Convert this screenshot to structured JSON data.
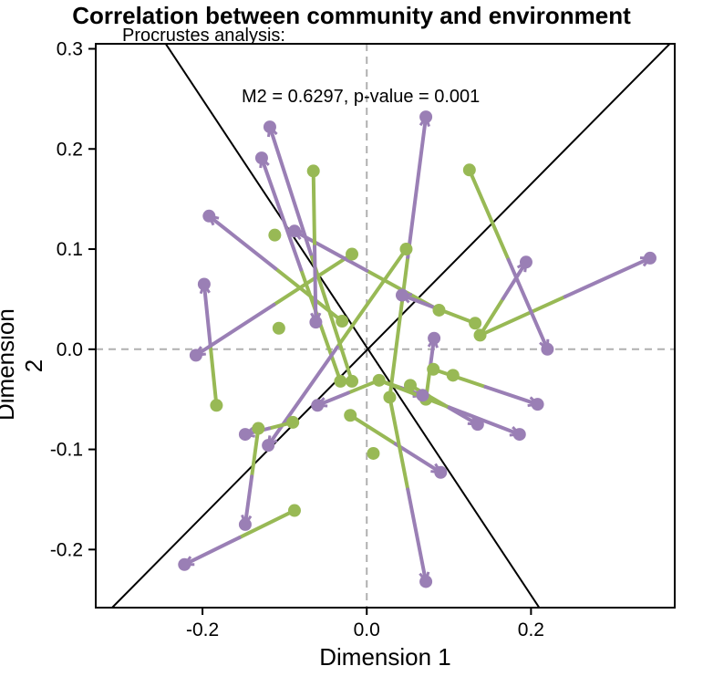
{
  "chart_data": {
    "type": "scatter",
    "title": "Correlation between community and environment",
    "subtitle": "Procrustes analysis:",
    "annotation": "M2 = 0.6297, p-value = 0.001",
    "xlabel": "Dimension 1",
    "ylabel": "Dimension 2",
    "xlim": [
      -0.33,
      0.375
    ],
    "ylim": [
      -0.258,
      0.305
    ],
    "xticks": [
      -0.2,
      0.0,
      0.2
    ],
    "xtick_labels": [
      "-0.2",
      "0.0",
      "0.2"
    ],
    "yticks": [
      -0.2,
      -0.1,
      0.0,
      0.1,
      0.2,
      0.3
    ],
    "ytick_labels": [
      "-0.2",
      "-0.1",
      "0.0",
      "0.1",
      "0.2",
      "0.3"
    ],
    "grid": false,
    "reference_lines": "dashed grey lines at x=0 and y=0",
    "rotation_axes": [
      {
        "x": [
          -0.31,
          0.375
        ],
        "y": [
          -0.258,
          0.31
        ]
      },
      {
        "x": [
          -0.265,
          0.21
        ],
        "y": [
          0.33,
          -0.258
        ]
      }
    ],
    "colors": {
      "target": "#9a7fb5",
      "procrustes": "#98b955",
      "axes": "#000000",
      "reference": "#b0b0b0"
    },
    "series": [
      {
        "name": "",
        "role": "target",
        "points": [
          [
            0.072,
            0.232
          ],
          [
            -0.118,
            0.222
          ],
          [
            -0.128,
            0.191
          ],
          [
            -0.192,
            0.133
          ],
          [
            -0.198,
            0.065
          ],
          [
            -0.208,
            -0.006
          ],
          [
            -0.088,
            0.118
          ],
          [
            -0.062,
            0.027
          ],
          [
            0.043,
            0.054
          ],
          [
            0.082,
            0.011
          ],
          [
            0.194,
            0.087
          ],
          [
            0.345,
            0.091
          ],
          [
            0.22,
            0.0
          ],
          [
            0.068,
            -0.046
          ],
          [
            0.208,
            -0.055
          ],
          [
            0.135,
            -0.075
          ],
          [
            0.186,
            -0.085
          ],
          [
            0.09,
            -0.123
          ],
          [
            -0.06,
            -0.056
          ],
          [
            -0.12,
            -0.096
          ],
          [
            -0.148,
            -0.085
          ],
          [
            -0.148,
            -0.175
          ],
          [
            -0.222,
            -0.215
          ],
          [
            0.072,
            -0.232
          ]
        ]
      },
      {
        "name": "",
        "role": "procrustes",
        "points": [
          [
            0.028,
            -0.048
          ],
          [
            -0.018,
            -0.032
          ],
          [
            -0.065,
            0.178
          ],
          [
            -0.03,
            0.028
          ],
          [
            -0.018,
            0.095
          ],
          [
            -0.183,
            -0.056
          ],
          [
            0.048,
            0.1
          ],
          [
            -0.112,
            0.114
          ],
          [
            -0.107,
            0.021
          ],
          [
            -0.032,
            -0.032
          ],
          [
            0.088,
            0.039
          ],
          [
            0.132,
            0.026
          ],
          [
            0.138,
            0.014
          ],
          [
            0.125,
            0.179
          ],
          [
            0.105,
            -0.026
          ],
          [
            0.081,
            -0.02
          ],
          [
            0.072,
            -0.05
          ],
          [
            0.053,
            -0.036
          ],
          [
            0.015,
            -0.031
          ],
          [
            -0.02,
            -0.066
          ],
          [
            -0.09,
            -0.073
          ],
          [
            -0.132,
            -0.079
          ],
          [
            -0.088,
            -0.161
          ],
          [
            0.008,
            -0.104
          ]
        ]
      }
    ],
    "links": [
      [
        0,
        0
      ],
      [
        1,
        1
      ],
      [
        2,
        9
      ],
      [
        3,
        3
      ],
      [
        4,
        5
      ],
      [
        5,
        4
      ],
      [
        6,
        10
      ],
      [
        7,
        2
      ],
      [
        8,
        11
      ],
      [
        9,
        16
      ],
      [
        10,
        12
      ],
      [
        11,
        12
      ],
      [
        12,
        13
      ],
      [
        13,
        18
      ],
      [
        14,
        15
      ],
      [
        15,
        17
      ],
      [
        16,
        18
      ],
      [
        17,
        19
      ],
      [
        18,
        18
      ],
      [
        19,
        6
      ],
      [
        20,
        20
      ],
      [
        21,
        21
      ],
      [
        22,
        22
      ],
      [
        23,
        0
      ]
    ]
  }
}
